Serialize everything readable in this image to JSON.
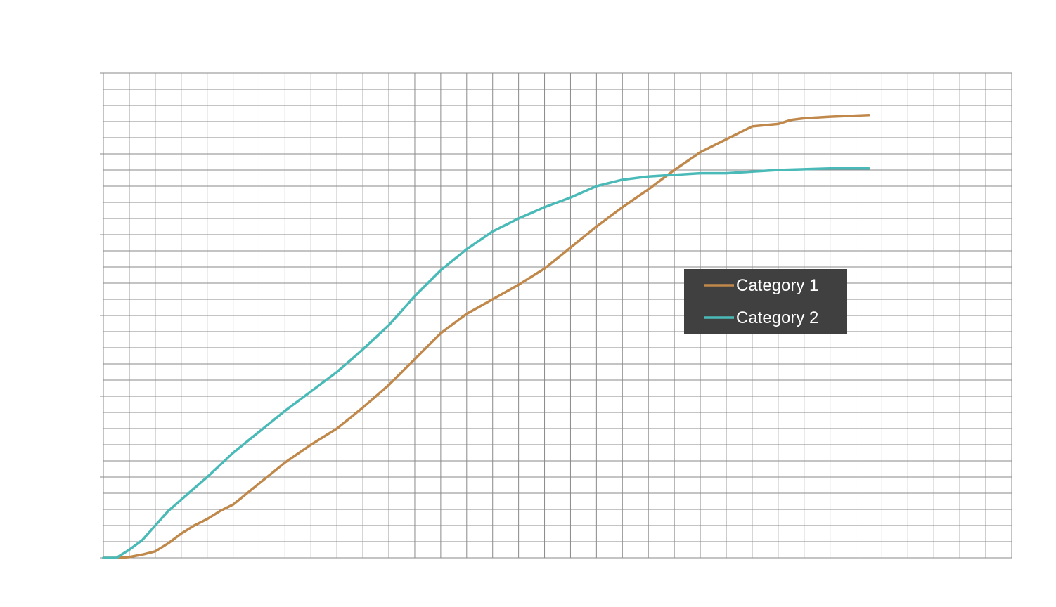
{
  "chart_data": {
    "type": "line",
    "title": "",
    "xlabel": "",
    "ylabel": "",
    "grid": true,
    "legend_position": "right",
    "legend_background": "#404040",
    "xlim": [
      0,
      35
    ],
    "ylim": [
      0,
      30
    ],
    "series": [
      {
        "name": "Category 1",
        "color": "#C0884A",
        "x": [
          0,
          0.5,
          1,
          1.5,
          2,
          2.5,
          3,
          3.5,
          4,
          4.5,
          5,
          6,
          7,
          8,
          9,
          10,
          11,
          12,
          13,
          14,
          15,
          16,
          17,
          18,
          19,
          20,
          21,
          22,
          23,
          24,
          25,
          26,
          26.5,
          27,
          28,
          29.5
        ],
        "values": [
          0,
          0,
          0.05,
          0.2,
          0.4,
          0.9,
          1.5,
          2.0,
          2.4,
          2.9,
          3.3,
          4.6,
          5.9,
          7.0,
          8.0,
          9.3,
          10.7,
          12.3,
          13.9,
          15.1,
          16.0,
          16.9,
          17.9,
          19.2,
          20.5,
          21.7,
          22.8,
          24.0,
          25.1,
          25.9,
          26.7,
          26.85,
          27.1,
          27.2,
          27.3,
          27.4
        ]
      },
      {
        "name": "Category 2",
        "color": "#4ABAB8",
        "x": [
          0,
          0.5,
          1,
          1.5,
          2,
          2.5,
          3,
          4,
          5,
          6,
          7,
          8,
          9,
          10,
          11,
          12,
          13,
          14,
          15,
          16,
          17,
          18,
          19,
          20,
          21,
          22,
          23,
          24,
          25,
          26,
          28,
          29.5
        ],
        "values": [
          0,
          0,
          0.5,
          1.1,
          2.0,
          2.9,
          3.6,
          5.0,
          6.5,
          7.8,
          9.1,
          10.3,
          11.5,
          12.9,
          14.4,
          16.2,
          17.8,
          19.1,
          20.2,
          21.0,
          21.7,
          22.3,
          23.0,
          23.4,
          23.6,
          23.7,
          23.8,
          23.8,
          23.9,
          24.0,
          24.1,
          24.1
        ]
      }
    ]
  }
}
